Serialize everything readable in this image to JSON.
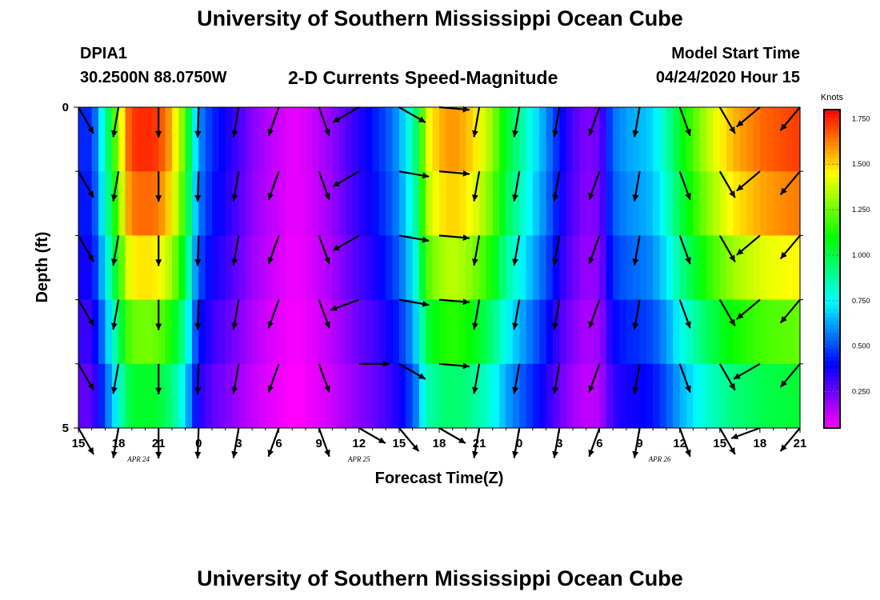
{
  "header": {
    "title": "University of Southern Mississippi Ocean Cube",
    "station": "DPIA1",
    "coords": "30.2500N 88.0750W",
    "subtitle": "2-D Currents Speed-Magnitude",
    "start_label": "Model Start Time",
    "start_value": "04/24/2020 Hour 15"
  },
  "footer": {
    "title": "University of Southern Mississippi Ocean Cube"
  },
  "chart_data": {
    "type": "heatmap",
    "title": "2-D Currents Speed-Magnitude",
    "xlabel": "Forecast Time(Z)",
    "ylabel": "Depth (ft)",
    "units": "Knots",
    "x_hours_from_start": [
      0,
      54
    ],
    "ylim": [
      0,
      5
    ],
    "x_ticks": [
      "15",
      "18",
      "21",
      "0",
      "3",
      "6",
      "9",
      "12",
      "15",
      "18",
      "21",
      "0",
      "3",
      "6",
      "9",
      "12",
      "15",
      "18",
      "21"
    ],
    "y_ticks": [
      "0",
      "5"
    ],
    "date_labels": [
      {
        "label": "APR 24",
        "hour": 4.5
      },
      {
        "label": "APR 25",
        "hour": 21
      },
      {
        "label": "APR 26",
        "hour": 43.5
      }
    ],
    "colorbar": {
      "label": "Knots",
      "range": [
        0.05,
        1.8
      ],
      "ticks": [
        "0.250",
        "0.500",
        "0.750",
        "1.000",
        "1.250",
        "1.500",
        "1.750"
      ]
    },
    "depth_bands": [
      0,
      1,
      2,
      3,
      4
    ],
    "speed_profile": [
      [
        0,
        0.45
      ],
      [
        1,
        0.45
      ],
      [
        1.5,
        0.65
      ],
      [
        2,
        0.85
      ],
      [
        2.5,
        1.1
      ],
      [
        3,
        1.3
      ],
      [
        3.5,
        1.6
      ],
      [
        4,
        1.72
      ],
      [
        5,
        1.75
      ],
      [
        6,
        1.72
      ],
      [
        7,
        1.55
      ],
      [
        8,
        1.2
      ],
      [
        8.5,
        0.85
      ],
      [
        9,
        0.6
      ],
      [
        10,
        0.45
      ],
      [
        11,
        0.38
      ],
      [
        12,
        0.3
      ],
      [
        13,
        0.22
      ],
      [
        14,
        0.16
      ],
      [
        15,
        0.12
      ],
      [
        16,
        0.08
      ],
      [
        17,
        0.1
      ],
      [
        18,
        0.15
      ],
      [
        19,
        0.2
      ],
      [
        20,
        0.28
      ],
      [
        21,
        0.35
      ],
      [
        22,
        0.42
      ],
      [
        23,
        0.5
      ],
      [
        24,
        0.62
      ],
      [
        25,
        0.85
      ],
      [
        25.5,
        1.05
      ],
      [
        26,
        1.4
      ],
      [
        27,
        1.55
      ],
      [
        28,
        1.6
      ],
      [
        29,
        1.55
      ],
      [
        30,
        1.45
      ],
      [
        31,
        1.3
      ],
      [
        32,
        1.05
      ],
      [
        33,
        0.9
      ],
      [
        34,
        0.75
      ],
      [
        35,
        0.6
      ],
      [
        36,
        0.42
      ],
      [
        37,
        0.3
      ],
      [
        38,
        0.22
      ],
      [
        39,
        0.25
      ],
      [
        40,
        0.55
      ],
      [
        41,
        0.62
      ],
      [
        42,
        0.65
      ],
      [
        43,
        0.7
      ],
      [
        44,
        0.85
      ],
      [
        45,
        1.05
      ],
      [
        46,
        1.2
      ],
      [
        47,
        1.35
      ],
      [
        48,
        1.45
      ],
      [
        49,
        1.55
      ],
      [
        50,
        1.6
      ],
      [
        51,
        1.65
      ],
      [
        52,
        1.68
      ],
      [
        53,
        1.7
      ],
      [
        54,
        1.72
      ]
    ],
    "depth_factor": [
      1.0,
      0.95,
      0.85,
      0.72,
      0.6
    ],
    "vector_hours": [
      0,
      3,
      6,
      9,
      12,
      15,
      18,
      21,
      24,
      27,
      30,
      33,
      36,
      39,
      42,
      45,
      48,
      51,
      54
    ],
    "vector_angles_deg": [
      [
        -60,
        -100,
        -90,
        -92,
        -100,
        -110,
        -70,
        -150,
        -30,
        -5,
        -100,
        -100,
        -100,
        -110,
        -100,
        -70,
        -60,
        -140,
        -130
      ],
      [
        -60,
        -100,
        -90,
        -92,
        -100,
        -110,
        -70,
        -150,
        -10,
        -5,
        -100,
        -100,
        -100,
        -110,
        -100,
        -70,
        -60,
        -140,
        -130
      ],
      [
        -60,
        -100,
        -90,
        -92,
        -100,
        -110,
        -70,
        -150,
        -10,
        -5,
        -100,
        -100,
        -100,
        -110,
        -100,
        -70,
        -60,
        -140,
        -130
      ],
      [
        -60,
        -100,
        -90,
        -92,
        -100,
        -110,
        -70,
        -160,
        -10,
        -5,
        -100,
        -100,
        -100,
        -110,
        -100,
        -70,
        -60,
        -140,
        -130
      ],
      [
        -60,
        -100,
        -90,
        -92,
        -100,
        -110,
        -70,
        0,
        -30,
        -5,
        -100,
        -100,
        -100,
        -110,
        -100,
        -70,
        -60,
        -150,
        -130
      ],
      [
        -60,
        -100,
        -90,
        -92,
        -100,
        -110,
        -70,
        -30,
        -50,
        -30,
        -100,
        -100,
        -100,
        -110,
        -100,
        -70,
        -60,
        -160,
        -130
      ]
    ]
  }
}
